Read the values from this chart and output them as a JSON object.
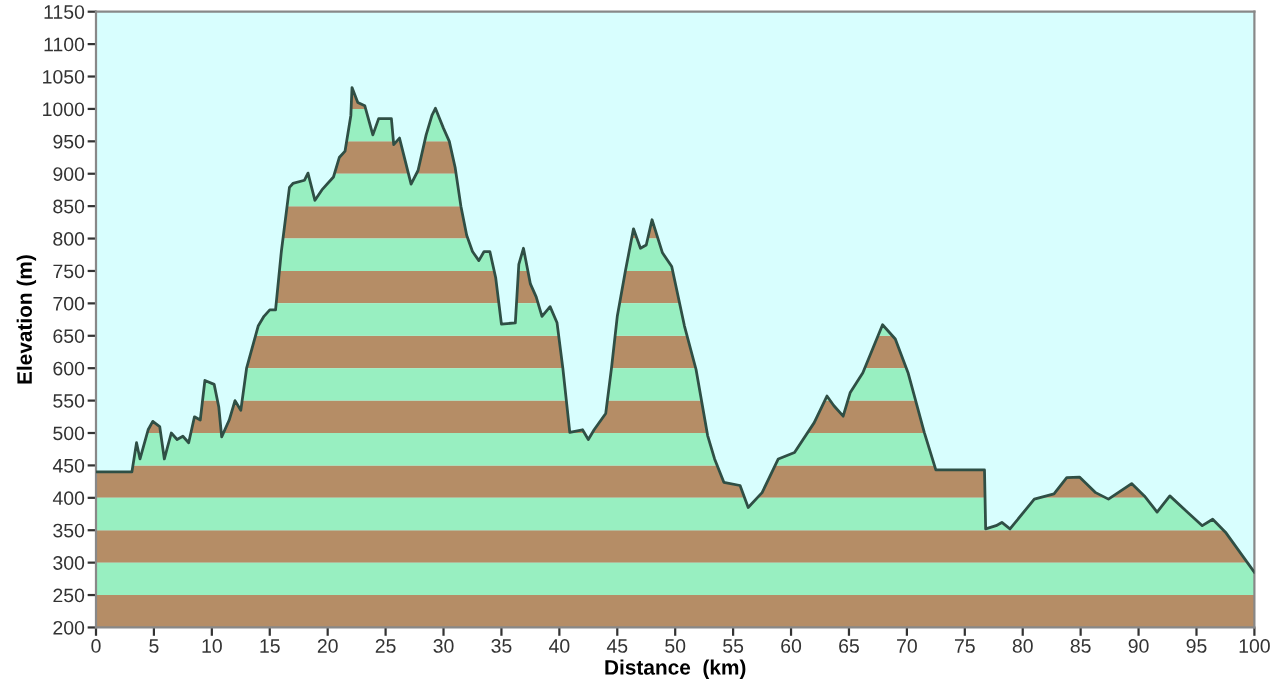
{
  "chart_data": {
    "type": "area",
    "xlabel": "Distance  (km)",
    "ylabel": "Elevation (m)",
    "xlim": [
      0,
      100
    ],
    "xticks": [
      0,
      5,
      10,
      15,
      20,
      25,
      30,
      35,
      40,
      45,
      50,
      55,
      60,
      65,
      70,
      75,
      80,
      85,
      90,
      95,
      100
    ],
    "ylim": [
      200,
      1150
    ],
    "yticks": [
      200,
      250,
      300,
      350,
      400,
      450,
      500,
      550,
      600,
      650,
      700,
      750,
      800,
      850,
      900,
      950,
      1000,
      1050,
      1100,
      1150
    ],
    "grid": false,
    "legend": false,
    "series": [
      {
        "color": "#98efc1",
        "x": [
          0,
          3.1,
          3.5,
          3.8,
          4.5,
          4.9,
          5.5,
          5.9,
          6.5,
          7.0,
          7.5,
          8.0,
          8.5,
          9.0,
          9.4,
          10.2,
          10.6,
          10.85,
          11.5,
          12.0,
          12.5,
          13.0,
          14.0,
          14.5,
          15.0,
          15.5,
          16.0,
          16.7,
          17.0,
          18.0,
          18.3,
          18.9,
          19.5,
          20.5,
          21.0,
          21.5,
          22.0,
          22.1,
          22.6,
          23.2,
          23.9,
          24.4,
          25.5,
          25.7,
          26.2,
          27.2,
          27.8,
          28.5,
          29.0,
          29.3,
          30.0,
          30.5,
          31.0,
          31.5,
          32.0,
          32.5,
          33.05,
          33.5,
          34.0,
          34.5,
          35.0,
          36.2,
          36.5,
          36.9,
          37.5,
          38.0,
          38.5,
          39.2,
          39.8,
          40.3,
          40.9,
          42.0,
          42.5,
          43.0,
          44.0,
          44.5,
          45.0,
          45.7,
          46.4,
          47.0,
          47.5,
          48.0,
          48.9,
          49.7,
          50.8,
          51.8,
          52.8,
          53.4,
          54.2,
          55.6,
          56.3,
          57.5,
          58.9,
          60.3,
          62.0,
          63.1,
          63.7,
          64.5,
          65.1,
          66.2,
          67.9,
          69.0,
          70.1,
          71.5,
          72.5,
          76.7,
          76.8,
          77.7,
          78.2,
          78.9,
          81.0,
          82.7,
          83.8,
          84.9,
          86.3,
          87.4,
          89.4,
          90.5,
          91.6,
          92.7,
          93.9,
          95.5,
          96.4,
          97.5,
          100
        ],
        "values": [
          440,
          440,
          485,
          460,
          505,
          518,
          510,
          460,
          500,
          490,
          495,
          485,
          525,
          520,
          581,
          575,
          540,
          494,
          520,
          550,
          535,
          600,
          665,
          680,
          690,
          690,
          780,
          879,
          885,
          890,
          901,
          859,
          875,
          895,
          925,
          935,
          990,
          1033,
          1010,
          1005,
          960,
          985,
          985,
          945,
          955,
          884,
          905,
          960,
          990,
          1001,
          970,
          950,
          910,
          850,
          805,
          780,
          766,
          780,
          780,
          740,
          668,
          670,
          760,
          785,
          730,
          710,
          680,
          695,
          670,
          600,
          501,
          505,
          490,
          505,
          530,
          600,
          680,
          750,
          815,
          785,
          790,
          829,
          778,
          757,
          665,
          598,
          496,
          460,
          424,
          419,
          385,
          408,
          460,
          470,
          516,
          557,
          542,
          526,
          562,
          593,
          667,
          645,
          593,
          501,
          443,
          443,
          352,
          357,
          362,
          352,
          398,
          406,
          431,
          432,
          408,
          398,
          422,
          403,
          378,
          403,
          383,
          357,
          367,
          347,
          285
        ]
      }
    ],
    "bands": [
      {
        "axis": "y",
        "from": 200,
        "to": 250,
        "color": "#b58d66"
      },
      {
        "axis": "y",
        "from": 300,
        "to": 350,
        "color": "#b58d66"
      },
      {
        "axis": "y",
        "from": 400,
        "to": 450,
        "color": "#b58d66"
      },
      {
        "axis": "y",
        "from": 500,
        "to": 550,
        "color": "#b58d66"
      },
      {
        "axis": "y",
        "from": 600,
        "to": 650,
        "color": "#b58d66"
      },
      {
        "axis": "y",
        "from": 700,
        "to": 750,
        "color": "#b58d66"
      },
      {
        "axis": "y",
        "from": 800,
        "to": 850,
        "color": "#b58d66"
      },
      {
        "axis": "y",
        "from": 900,
        "to": 950,
        "color": "#b58d66"
      },
      {
        "axis": "y",
        "from": 1000,
        "to": 1050,
        "color": "#b58d66"
      }
    ]
  }
}
